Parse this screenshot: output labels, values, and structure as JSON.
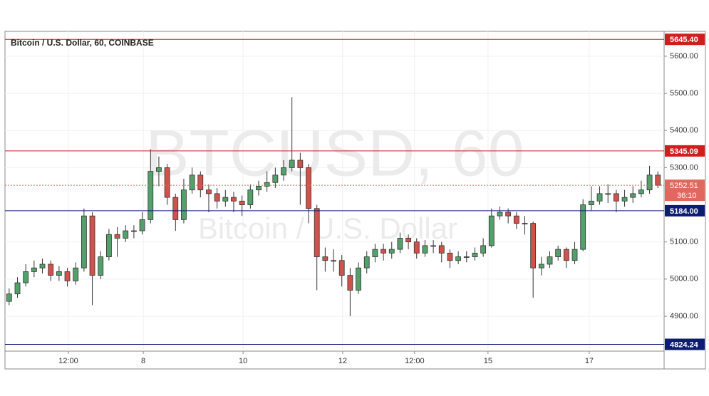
{
  "chart_data": {
    "type": "candlestick",
    "title": "Bitcoin / U.S. Dollar, 60, COINBASE",
    "watermark_symbol": "BTCUSD, 60",
    "watermark_name": "Bitcoin / U.S. Dollar",
    "x": [
      0,
      4,
      8,
      12,
      16,
      20,
      24,
      28,
      32,
      36,
      40,
      44,
      48,
      52,
      56,
      60,
      64,
      68,
      72,
      76,
      80,
      84,
      88,
      92,
      96,
      100,
      104,
      108,
      112,
      116,
      120,
      124,
      128,
      132,
      136,
      140,
      144,
      148,
      152,
      156,
      160,
      164,
      168,
      172,
      176,
      180,
      184,
      188,
      192,
      196,
      200,
      204,
      208,
      212,
      216,
      220,
      224,
      228,
      232,
      236,
      240,
      244,
      248,
      252,
      256,
      260,
      264,
      268,
      272,
      276,
      280,
      284,
      288,
      292,
      296,
      300,
      304,
      308,
      312
    ],
    "series": [
      {
        "up_color": "#53a06b",
        "down_color": "#d0524a",
        "open": [
          4940,
          4960,
          4990,
          5020,
          5030,
          5040,
          5010,
          5020,
          4995,
          5030,
          5170,
          5010,
          5060,
          5120,
          5110,
          5130,
          5130,
          5160,
          5290,
          5300,
          5220,
          5160,
          5240,
          5280,
          5240,
          5230,
          5210,
          5220,
          5210,
          5200,
          5240,
          5250,
          5260,
          5280,
          5300,
          5320,
          5300,
          5190,
          5060,
          5050,
          5050,
          5010,
          4970,
          5030,
          5060,
          5080,
          5070,
          5080,
          5110,
          5100,
          5070,
          5090,
          5090,
          5070,
          5050,
          5060,
          5060,
          5070,
          5090,
          5170,
          5180,
          5170,
          5150,
          5150,
          5030,
          5040,
          5060,
          5080,
          5050,
          5080,
          5200,
          5210,
          5230,
          5230,
          5210,
          5220,
          5230,
          5240,
          5280
        ],
        "high": [
          4975,
          5005,
          5040,
          5050,
          5055,
          5050,
          5035,
          5030,
          5045,
          5190,
          5180,
          5075,
          5135,
          5140,
          5145,
          5145,
          5180,
          5350,
          5330,
          5310,
          5230,
          5270,
          5300,
          5290,
          5255,
          5245,
          5240,
          5235,
          5225,
          5255,
          5265,
          5290,
          5300,
          5320,
          5490,
          5340,
          5310,
          5200,
          5085,
          5080,
          5065,
          5030,
          5045,
          5075,
          5095,
          5095,
          5100,
          5125,
          5120,
          5110,
          5105,
          5105,
          5100,
          5080,
          5075,
          5075,
          5085,
          5110,
          5190,
          5195,
          5190,
          5180,
          5170,
          5155,
          5060,
          5075,
          5090,
          5085,
          5100,
          5215,
          5250,
          5250,
          5255,
          5240,
          5240,
          5250,
          5265,
          5305,
          5290
        ],
        "low": [
          4930,
          4950,
          4980,
          5005,
          5015,
          4995,
          4995,
          4980,
          4985,
          5020,
          4930,
          5000,
          5050,
          5060,
          5100,
          5110,
          5120,
          5150,
          5250,
          5200,
          5130,
          5150,
          5230,
          5220,
          5180,
          5190,
          5195,
          5180,
          5170,
          5190,
          5225,
          5235,
          5245,
          5265,
          5290,
          5200,
          5150,
          4970,
          5020,
          5020,
          4980,
          4900,
          4960,
          5015,
          5045,
          5050,
          5055,
          5070,
          5080,
          5055,
          5060,
          5070,
          5045,
          5030,
          5040,
          5045,
          5050,
          5060,
          5085,
          5160,
          5150,
          5135,
          5120,
          4950,
          5010,
          5030,
          5050,
          5030,
          5040,
          5075,
          5185,
          5200,
          5205,
          5180,
          5195,
          5205,
          5220,
          5230,
          5245
        ],
        "close": [
          4960,
          4990,
          5020,
          5030,
          5040,
          5010,
          5020,
          4995,
          5030,
          5170,
          5010,
          5060,
          5120,
          5110,
          5130,
          5130,
          5160,
          5290,
          5300,
          5220,
          5160,
          5240,
          5280,
          5240,
          5230,
          5210,
          5220,
          5210,
          5200,
          5240,
          5250,
          5260,
          5280,
          5300,
          5320,
          5300,
          5190,
          5060,
          5050,
          5050,
          5010,
          4970,
          5030,
          5060,
          5080,
          5070,
          5080,
          5110,
          5100,
          5070,
          5090,
          5090,
          5070,
          5050,
          5060,
          5060,
          5070,
          5090,
          5170,
          5180,
          5170,
          5150,
          5150,
          5030,
          5040,
          5060,
          5080,
          5050,
          5080,
          5200,
          5210,
          5230,
          5230,
          5210,
          5220,
          5230,
          5240,
          5280,
          5252.51
        ]
      }
    ],
    "xlim": [
      -2,
      315
    ],
    "xticks": [
      {
        "value": 28.5,
        "label": "12:00"
      },
      {
        "value": 64.5,
        "label": "8"
      },
      {
        "value": 112.5,
        "label": "10"
      },
      {
        "value": 160.4,
        "label": "12"
      },
      {
        "value": 195,
        "label": "12:00"
      },
      {
        "value": 230.3,
        "label": "15"
      },
      {
        "value": 279,
        "label": "17"
      }
    ],
    "ylim": [
      4806,
      5667
    ],
    "yticks": [
      {
        "value": 4900,
        "label": "4900.00"
      },
      {
        "value": 5000,
        "label": "5000.00"
      },
      {
        "value": 5100,
        "label": "5100.00"
      },
      {
        "value": 5300,
        "label": "5300.00"
      },
      {
        "value": 5400,
        "label": "5400.00"
      },
      {
        "value": 5500,
        "label": "5500.00"
      },
      {
        "value": 5600,
        "label": "5600.00"
      }
    ],
    "grid": true,
    "hlines": [
      {
        "value": 5645.4,
        "label": "5645.40",
        "color": "#d01e1e"
      },
      {
        "value": 5345.09,
        "label": "5345.09",
        "color": "#d01e1e"
      },
      {
        "value": 5184.0,
        "label": "5184.00",
        "color": "#0c1c72"
      },
      {
        "value": 4824.24,
        "label": "4824.24",
        "color": "#0c1c72"
      }
    ],
    "last_price": {
      "value": 5252.51,
      "countdown": "36:10",
      "color": "#e0685e"
    }
  }
}
